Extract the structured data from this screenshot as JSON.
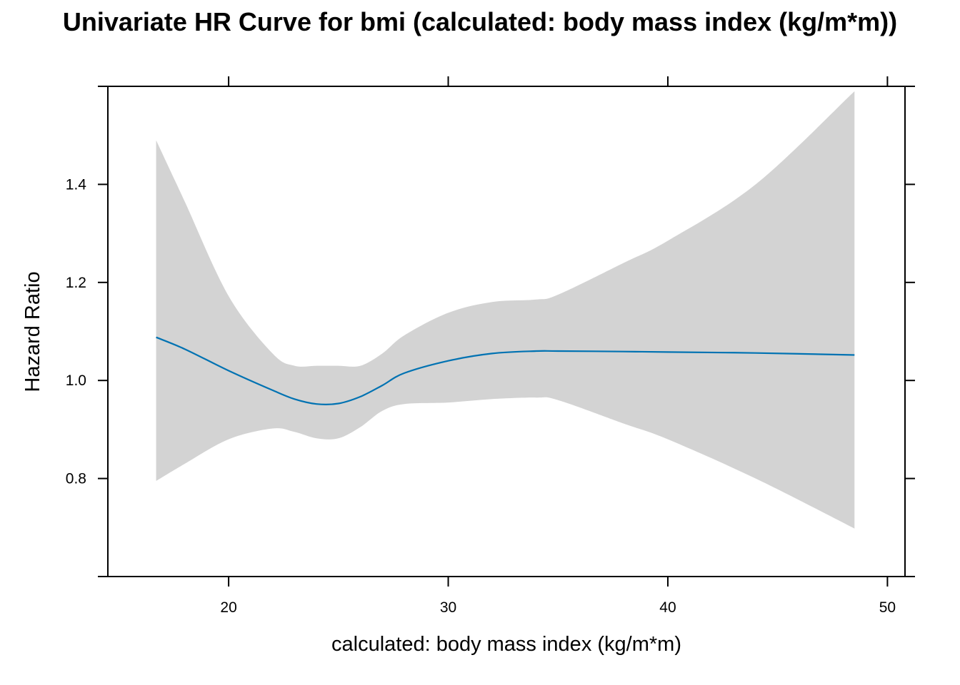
{
  "chart_data": {
    "type": "line",
    "title": "Univariate HR Curve for bmi (calculated: body mass index (kg/m*m))",
    "xlabel": "calculated: body mass index (kg/m*m)",
    "ylabel": "Hazard Ratio",
    "xlim": [
      14.5,
      50.8
    ],
    "ylim": [
      0.6,
      1.6
    ],
    "x_ticks": [
      20,
      30,
      40,
      50
    ],
    "y_ticks": [
      0.8,
      1.0,
      1.2,
      1.4
    ],
    "x_tick_labels": [
      "20",
      "30",
      "40",
      "50"
    ],
    "y_tick_labels": [
      "0.8",
      "1.0",
      "1.2",
      "1.4"
    ],
    "grid": false,
    "band_color": "#d3d3d3",
    "line_color": "#0072b2",
    "series": [
      {
        "x": [
          16.7,
          18,
          20,
          22,
          23,
          24,
          25,
          26,
          27,
          28,
          30,
          32,
          34,
          35,
          38,
          40,
          44,
          48.5
        ],
        "y": [
          1.088,
          1.064,
          1.02,
          0.98,
          0.962,
          0.952,
          0.953,
          0.967,
          0.99,
          1.015,
          1.04,
          1.055,
          1.06,
          1.06,
          1.059,
          1.058,
          1.056,
          1.052
        ],
        "lower": [
          0.795,
          0.83,
          0.88,
          0.902,
          0.895,
          0.882,
          0.882,
          0.905,
          0.938,
          0.952,
          0.955,
          0.962,
          0.965,
          0.96,
          0.912,
          0.88,
          0.8,
          0.698
        ],
        "upper": [
          1.49,
          1.365,
          1.172,
          1.055,
          1.03,
          1.03,
          1.03,
          1.03,
          1.055,
          1.092,
          1.138,
          1.16,
          1.165,
          1.175,
          1.24,
          1.285,
          1.4,
          1.59
        ]
      }
    ]
  }
}
